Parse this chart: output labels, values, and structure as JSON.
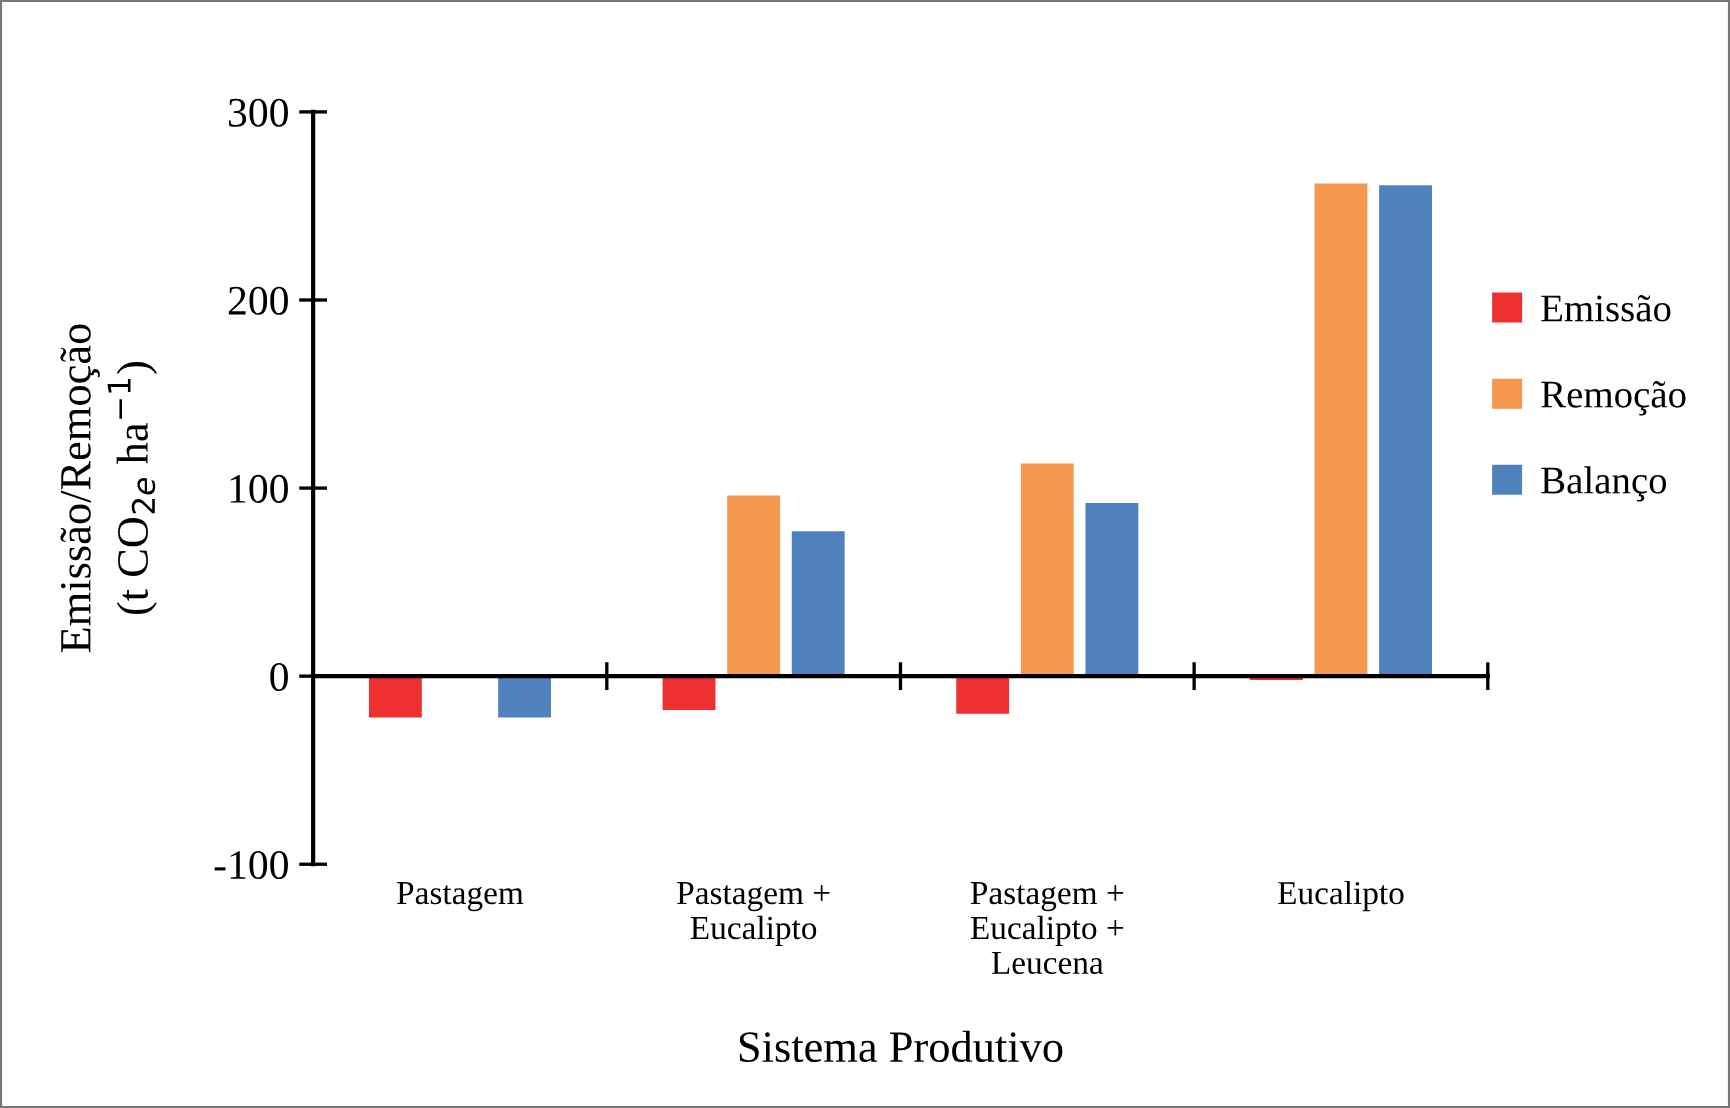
{
  "chart_data": {
    "type": "bar",
    "xlabel": "Sistema Produtivo",
    "ylabel": "Emissão/Remoção\n(t CO$_{2e}$ ha$^{−1}$)",
    "categories": [
      "Pastagem",
      "Pastagem +\nEucalipto",
      "Pastagem +\nEucalipto +\nLeucena",
      "Eucalipto"
    ],
    "series": [
      {
        "name": "Emissão",
        "color": "#ee3130",
        "values": [
          -22,
          -18,
          -20,
          -2
        ]
      },
      {
        "name": "Remoção",
        "color": "#f5984f",
        "values": [
          0,
          96,
          113,
          262
        ]
      },
      {
        "name": "Balanço",
        "color": "#4f81bd",
        "values": [
          -22,
          77,
          92,
          261
        ]
      }
    ],
    "ylim": [
      -100,
      300
    ],
    "yticks": [
      -100,
      0,
      100,
      200,
      300
    ],
    "legend": "right"
  }
}
